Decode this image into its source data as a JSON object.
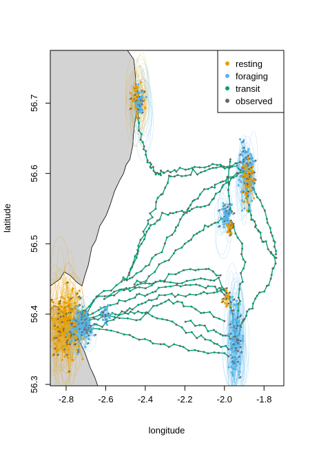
{
  "chart_data": {
    "type": "scatter",
    "title": "",
    "xlabel": "longitude",
    "ylabel": "latitude",
    "xlim": [
      -2.88,
      -1.7
    ],
    "ylim": [
      56.298,
      56.775
    ],
    "x_ticks": [
      {
        "value": -2.8,
        "label": "-2.8"
      },
      {
        "value": -2.6,
        "label": "-2.6"
      },
      {
        "value": -2.4,
        "label": "-2.4"
      },
      {
        "value": -2.2,
        "label": "-2.2"
      },
      {
        "value": -2.0,
        "label": "-2.0"
      },
      {
        "value": -1.8,
        "label": "-1.8"
      }
    ],
    "y_ticks": [
      {
        "value": 56.3,
        "label": "56.3"
      },
      {
        "value": 56.4,
        "label": "56.4"
      },
      {
        "value": 56.5,
        "label": "56.5"
      },
      {
        "value": 56.6,
        "label": "56.6"
      },
      {
        "value": 56.7,
        "label": "56.7"
      }
    ],
    "grid": false,
    "legend_position": "top-right",
    "legend": [
      {
        "label": "resting",
        "color": "#E69F00"
      },
      {
        "label": "foraging",
        "color": "#56B4E9"
      },
      {
        "label": "transit",
        "color": "#009E73"
      },
      {
        "label": "observed",
        "color": "#666666"
      }
    ],
    "land_color": "#d3d3d3",
    "land": {
      "north": [
        [
          -2.88,
          56.775
        ],
        [
          -2.49,
          56.775
        ],
        [
          -2.458,
          56.762
        ],
        [
          -2.452,
          56.745
        ],
        [
          -2.447,
          56.725
        ],
        [
          -2.437,
          56.715
        ],
        [
          -2.437,
          56.7
        ],
        [
          -2.445,
          56.685
        ],
        [
          -2.453,
          56.672
        ],
        [
          -2.46,
          56.656
        ],
        [
          -2.463,
          56.64
        ],
        [
          -2.478,
          56.62
        ],
        [
          -2.497,
          56.612
        ],
        [
          -2.51,
          56.6
        ],
        [
          -2.53,
          56.59
        ],
        [
          -2.555,
          56.575
        ],
        [
          -2.578,
          56.555
        ],
        [
          -2.598,
          56.54
        ],
        [
          -2.63,
          56.525
        ],
        [
          -2.65,
          56.505
        ],
        [
          -2.67,
          56.495
        ],
        [
          -2.688,
          56.47
        ],
        [
          -2.705,
          56.455
        ],
        [
          -2.72,
          56.44
        ],
        [
          -2.745,
          56.445
        ],
        [
          -2.78,
          56.455
        ],
        [
          -2.81,
          56.46
        ],
        [
          -2.83,
          56.45
        ],
        [
          -2.88,
          56.44
        ]
      ],
      "south": [
        [
          -2.88,
          56.298
        ],
        [
          -2.88,
          56.405
        ],
        [
          -2.862,
          56.412
        ],
        [
          -2.84,
          56.41
        ],
        [
          -2.825,
          56.405
        ],
        [
          -2.81,
          56.4
        ],
        [
          -2.78,
          56.39
        ],
        [
          -2.755,
          56.375
        ],
        [
          -2.73,
          56.36
        ],
        [
          -2.705,
          56.345
        ],
        [
          -2.68,
          56.325
        ],
        [
          -2.655,
          56.31
        ],
        [
          -2.64,
          56.298
        ]
      ]
    },
    "series": [
      {
        "name": "transit",
        "color": "#009E73",
        "tracks": [
          [
            [
              -2.75,
              56.385
            ],
            [
              -2.66,
              56.393
            ],
            [
              -2.58,
              56.398
            ],
            [
              -2.52,
              56.402
            ],
            [
              -2.46,
              56.41
            ],
            [
              -2.38,
              56.42
            ],
            [
              -2.3,
              56.425
            ],
            [
              -2.2,
              56.428
            ],
            [
              -2.1,
              56.43
            ],
            [
              -2.02,
              56.432
            ],
            [
              -1.98,
              56.425
            ]
          ],
          [
            [
              -2.74,
              56.39
            ],
            [
              -2.6,
              56.41
            ],
            [
              -2.5,
              56.418
            ],
            [
              -2.42,
              56.425
            ],
            [
              -2.35,
              56.435
            ],
            [
              -2.25,
              56.44
            ],
            [
              -2.15,
              56.442
            ],
            [
              -2.05,
              56.44
            ],
            [
              -1.99,
              56.43
            ]
          ],
          [
            [
              -2.74,
              56.38
            ],
            [
              -2.62,
              56.385
            ],
            [
              -2.5,
              56.4
            ],
            [
              -2.44,
              56.405
            ],
            [
              -2.34,
              56.395
            ],
            [
              -2.24,
              56.385
            ],
            [
              -2.14,
              56.37
            ],
            [
              -2.05,
              56.36
            ],
            [
              -1.98,
              56.35
            ]
          ],
          [
            [
              -2.72,
              56.375
            ],
            [
              -2.6,
              56.38
            ],
            [
              -2.48,
              56.37
            ],
            [
              -2.38,
              56.36
            ],
            [
              -2.28,
              56.355
            ],
            [
              -2.18,
              56.35
            ],
            [
              -2.08,
              56.345
            ],
            [
              -1.98,
              56.34
            ]
          ],
          [
            [
              -2.73,
              56.39
            ],
            [
              -2.6,
              56.4
            ],
            [
              -2.45,
              56.39
            ],
            [
              -2.36,
              56.41
            ],
            [
              -2.28,
              56.418
            ],
            [
              -2.2,
              56.412
            ],
            [
              -2.1,
              56.405
            ],
            [
              -2.0,
              56.39
            ]
          ],
          [
            [
              -2.75,
              56.385
            ],
            [
              -2.66,
              56.42
            ],
            [
              -2.56,
              56.43
            ],
            [
              -2.46,
              56.44
            ],
            [
              -2.36,
              56.445
            ],
            [
              -2.24,
              56.448
            ],
            [
              -2.12,
              56.45
            ],
            [
              -2.03,
              56.447
            ],
            [
              -1.97,
              56.42
            ],
            [
              -1.95,
              56.38
            ],
            [
              -1.94,
              56.35
            ]
          ],
          [
            [
              -2.74,
              56.395
            ],
            [
              -2.64,
              56.425
            ],
            [
              -2.52,
              56.448
            ],
            [
              -2.46,
              56.452
            ],
            [
              -2.38,
              56.47
            ],
            [
              -2.3,
              56.5
            ],
            [
              -2.24,
              56.525
            ],
            [
              -2.2,
              56.545
            ],
            [
              -2.16,
              56.56
            ],
            [
              -2.1,
              56.575
            ],
            [
              -2.04,
              56.585
            ],
            [
              -1.98,
              56.595
            ],
            [
              -1.9,
              56.6
            ]
          ],
          [
            [
              -2.48,
              56.455
            ],
            [
              -2.44,
              56.49
            ],
            [
              -2.4,
              56.52
            ],
            [
              -2.36,
              56.545
            ],
            [
              -2.32,
              56.57
            ],
            [
              -2.28,
              56.592
            ],
            [
              -2.22,
              56.598
            ],
            [
              -2.14,
              56.6
            ],
            [
              -2.06,
              56.605
            ],
            [
              -1.98,
              56.61
            ],
            [
              -1.92,
              56.615
            ],
            [
              -1.88,
              56.625
            ]
          ],
          [
            [
              -2.5,
              56.445
            ],
            [
              -2.46,
              56.47
            ],
            [
              -2.42,
              56.5
            ],
            [
              -2.37,
              56.525
            ],
            [
              -2.31,
              56.54
            ],
            [
              -2.24,
              56.545
            ],
            [
              -2.16,
              56.548
            ],
            [
              -2.08,
              56.555
            ],
            [
              -2.03,
              56.575
            ],
            [
              -1.98,
              56.59
            ],
            [
              -1.93,
              56.6
            ]
          ],
          [
            [
              -2.46,
              56.44
            ],
            [
              -2.38,
              56.455
            ],
            [
              -2.28,
              56.48
            ],
            [
              -2.2,
              56.5
            ],
            [
              -2.14,
              56.515
            ],
            [
              -2.08,
              56.525
            ],
            [
              -2.02,
              56.535
            ],
            [
              -1.98,
              56.54
            ]
          ],
          [
            [
              -2.44,
              56.7
            ],
            [
              -2.43,
              56.66
            ],
            [
              -2.41,
              56.64
            ],
            [
              -2.39,
              56.622
            ],
            [
              -2.37,
              56.61
            ],
            [
              -2.35,
              56.6
            ],
            [
              -2.33,
              56.6
            ],
            [
              -2.3,
              56.602
            ],
            [
              -2.24,
              56.605
            ],
            [
              -2.16,
              56.608
            ],
            [
              -2.08,
              56.61
            ],
            [
              -2.0,
              56.612
            ],
            [
              -1.94,
              56.61
            ],
            [
              -1.9,
              56.6
            ]
          ],
          [
            [
              -1.97,
              56.545
            ],
            [
              -1.98,
              56.575
            ],
            [
              -1.98,
              56.6
            ],
            [
              -1.97,
              56.62
            ]
          ],
          [
            [
              -1.9,
              56.585
            ],
            [
              -1.88,
              56.555
            ],
            [
              -1.86,
              56.535
            ],
            [
              -1.84,
              56.525
            ],
            [
              -1.81,
              56.51
            ],
            [
              -1.78,
              56.495
            ],
            [
              -1.74,
              56.48
            ],
            [
              -1.75,
              56.465
            ],
            [
              -1.79,
              56.44
            ],
            [
              -1.84,
              56.42
            ],
            [
              -1.88,
              56.4
            ],
            [
              -1.91,
              56.39
            ],
            [
              -1.93,
              56.37
            ]
          ],
          [
            [
              -1.86,
              56.58
            ],
            [
              -1.82,
              56.56
            ],
            [
              -1.78,
              56.53
            ],
            [
              -1.75,
              56.505
            ],
            [
              -1.74,
              56.485
            ]
          ],
          [
            [
              -1.96,
              56.53
            ],
            [
              -1.92,
              56.5
            ],
            [
              -1.9,
              56.47
            ],
            [
              -1.92,
              56.44
            ],
            [
              -1.93,
              56.41
            ],
            [
              -1.94,
              56.38
            ]
          ],
          [
            [
              -2.2,
              56.39
            ],
            [
              -2.1,
              56.38
            ],
            [
              -2.02,
              56.372
            ],
            [
              -1.97,
              56.365
            ]
          ],
          [
            [
              -2.6,
              56.42
            ],
            [
              -2.5,
              56.435
            ],
            [
              -2.4,
              56.44
            ],
            [
              -2.3,
              56.45
            ],
            [
              -2.2,
              56.46
            ],
            [
              -2.1,
              56.465
            ],
            [
              -2.02,
              56.455
            ]
          ]
        ]
      }
    ],
    "clusters": [
      {
        "label": "resting",
        "center": [
          -2.8,
          56.385
        ],
        "points": 260,
        "spread": [
          0.055,
          0.03
        ]
      },
      {
        "label": "foraging",
        "center": [
          -2.72,
          56.383
        ],
        "points": 150,
        "spread": [
          0.035,
          0.014
        ]
      },
      {
        "label": "resting",
        "center": [
          -2.44,
          56.705
        ],
        "points": 70,
        "spread": [
          0.02,
          0.014
        ]
      },
      {
        "label": "foraging",
        "center": [
          -2.43,
          56.7
        ],
        "points": 40,
        "spread": [
          0.016,
          0.012
        ]
      },
      {
        "label": "foraging",
        "center": [
          -1.945,
          56.36
        ],
        "points": 150,
        "spread": [
          0.02,
          0.038
        ]
      },
      {
        "label": "foraging",
        "center": [
          -1.89,
          56.595
        ],
        "points": 110,
        "spread": [
          0.028,
          0.025
        ]
      },
      {
        "label": "resting",
        "center": [
          -1.88,
          56.592
        ],
        "points": 60,
        "spread": [
          0.02,
          0.018
        ]
      },
      {
        "label": "foraging",
        "center": [
          -1.99,
          56.54
        ],
        "points": 60,
        "spread": [
          0.022,
          0.012
        ]
      },
      {
        "label": "resting",
        "center": [
          -1.97,
          56.52
        ],
        "points": 25,
        "spread": [
          0.012,
          0.01
        ]
      },
      {
        "label": "foraging",
        "center": [
          -2.6,
          56.4
        ],
        "points": 25,
        "spread": [
          0.025,
          0.01
        ]
      },
      {
        "label": "resting",
        "center": [
          -1.99,
          56.425
        ],
        "points": 20,
        "spread": [
          0.012,
          0.01
        ]
      }
    ],
    "uncertainty_ellipses": [
      {
        "label": "resting",
        "center": [
          -2.81,
          56.385
        ],
        "count": 55,
        "spread": [
          0.055,
          0.04
        ],
        "radius": [
          0.04,
          0.05
        ]
      },
      {
        "label": "foraging",
        "center": [
          -2.73,
          56.383
        ],
        "count": 25,
        "spread": [
          0.04,
          0.02
        ],
        "radius": [
          0.03,
          0.025
        ]
      },
      {
        "label": "resting",
        "center": [
          -2.44,
          56.705
        ],
        "count": 20,
        "spread": [
          0.025,
          0.02
        ],
        "radius": [
          0.03,
          0.035
        ]
      },
      {
        "label": "foraging",
        "center": [
          -2.41,
          56.695
        ],
        "count": 12,
        "spread": [
          0.03,
          0.03
        ],
        "radius": [
          0.035,
          0.04
        ]
      },
      {
        "label": "foraging",
        "center": [
          -1.94,
          56.36
        ],
        "count": 35,
        "spread": [
          0.02,
          0.04
        ],
        "radius": [
          0.035,
          0.06
        ]
      },
      {
        "label": "foraging",
        "center": [
          -1.89,
          56.595
        ],
        "count": 18,
        "spread": [
          0.03,
          0.025
        ],
        "radius": [
          0.03,
          0.035
        ]
      },
      {
        "label": "foraging",
        "center": [
          -2.0,
          56.53
        ],
        "count": 10,
        "spread": [
          0.025,
          0.02
        ],
        "radius": [
          0.025,
          0.025
        ]
      }
    ]
  }
}
